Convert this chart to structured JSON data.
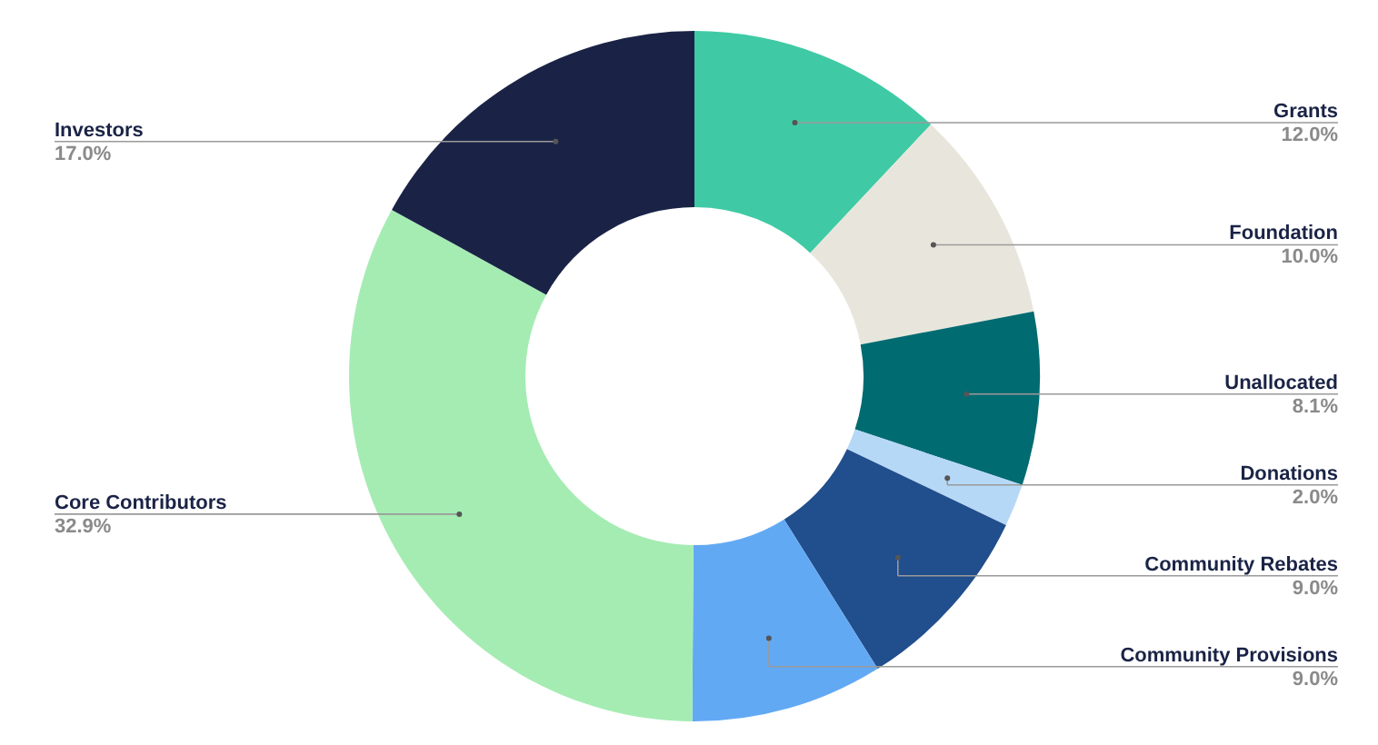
{
  "chart_data": {
    "type": "donut",
    "categories": [
      "Grants",
      "Foundation",
      "Unallocated",
      "Donations",
      "Community Rebates",
      "Community Provisions",
      "Core Contributors",
      "Investors"
    ],
    "values": [
      12.0,
      10.0,
      8.1,
      2.0,
      9.0,
      9.0,
      32.9,
      17.0
    ],
    "colors": [
      "#3fcaa5",
      "#e8e6dc",
      "#016b72",
      "#b6d8f7",
      "#214e8c",
      "#62a9f4",
      "#a5ecb3",
      "#1a2346"
    ],
    "value_labels": [
      "12.0%",
      "10.0%",
      "8.1%",
      "2.0%",
      "9.0%",
      "9.0%",
      "32.9%",
      "17.0%"
    ]
  }
}
